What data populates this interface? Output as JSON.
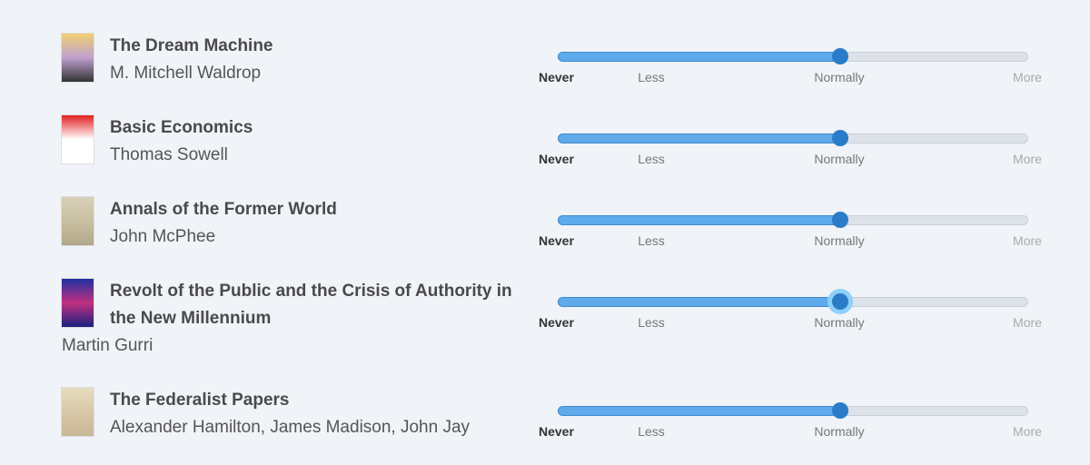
{
  "scale_labels": [
    "Never",
    "Less",
    "Normally",
    "More"
  ],
  "books": [
    {
      "title": "The Dream Machine",
      "author": "M. Mitchell Waldrop",
      "value_label": "Normally",
      "value_fraction": 0.6,
      "cover_colors": [
        "#f0d070",
        "#c0a0d0",
        "#333"
      ]
    },
    {
      "title": "Basic Economics",
      "author": "Thomas Sowell",
      "value_label": "Normally",
      "value_fraction": 0.6,
      "cover_colors": [
        "#e02020",
        "#ffffff",
        "#ffffff"
      ]
    },
    {
      "title": "Annals of the Former World",
      "author": "John McPhee",
      "value_label": "Normally",
      "value_fraction": 0.6,
      "cover_colors": [
        "#d8d0b8",
        "#c8c0a0",
        "#b0a888"
      ]
    },
    {
      "title": "Revolt of the Public and the Crisis of Authority in the New Millennium",
      "author": "Martin Gurri",
      "value_label": "Normally",
      "value_fraction": 0.6,
      "cover_colors": [
        "#2030a0",
        "#c03080",
        "#1a2080"
      ]
    },
    {
      "title": "The Federalist Papers",
      "author": "Alexander Hamilton, James Madison, John Jay",
      "value_label": "Normally",
      "value_fraction": 0.6,
      "cover_colors": [
        "#e8dcc0",
        "#d8c8a8",
        "#c8b898"
      ]
    }
  ],
  "colors": {
    "accent": "#5eaaea",
    "thumb": "#2b7cc8"
  }
}
